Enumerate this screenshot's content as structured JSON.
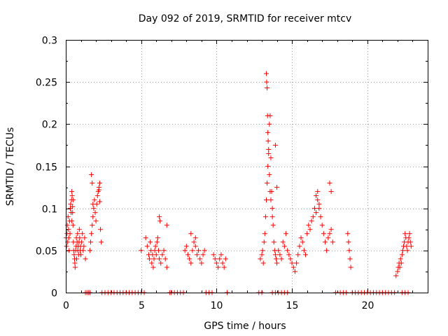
{
  "chart_data": {
    "type": "scatter",
    "title": "Day 092 of 2019, SRMTID for receiver mtcv",
    "xlabel": "GPS time / hours",
    "ylabel": "SRMTID / TECUs",
    "xlim": [
      0,
      24
    ],
    "ylim": [
      0,
      0.3
    ],
    "grid": true,
    "marker": "+",
    "color": "#ff0000",
    "x_ticks": [
      0,
      5,
      10,
      15,
      20
    ],
    "x_tick_labels": [
      "0",
      "5",
      "10",
      "15",
      "20"
    ],
    "y_ticks": [
      0,
      0.05,
      0.1,
      0.15,
      0.2,
      0.25,
      0.3
    ],
    "y_tick_labels": [
      "0",
      "0.05",
      "0.1",
      "0.15",
      "0.2",
      "0.25",
      "0.3"
    ],
    "series": [
      {
        "name": "SRMTID",
        "x": [
          0.02,
          0.05,
          0.08,
          0.1,
          0.12,
          0.15,
          0.18,
          0.2,
          0.22,
          0.25,
          0.28,
          0.3,
          0.32,
          0.35,
          0.38,
          0.4,
          0.42,
          0.45,
          0.48,
          0.5,
          0.52,
          0.55,
          0.58,
          0.6,
          0.62,
          0.65,
          0.68,
          0.7,
          0.72,
          0.75,
          0.78,
          0.8,
          0.82,
          0.85,
          0.88,
          0.9,
          0.92,
          0.95,
          0.98,
          1.0,
          1.05,
          1.1,
          1.15,
          1.2,
          1.25,
          1.3,
          1.6,
          1.65,
          1.7,
          1.75,
          1.8,
          1.85,
          1.9,
          1.95,
          2.0,
          2.05,
          2.1,
          2.15,
          2.2,
          2.25,
          2.3,
          2.35,
          5.0,
          5.3,
          5.4,
          5.5,
          5.55,
          5.6,
          5.65,
          5.7,
          5.75,
          5.8,
          5.85,
          5.9,
          5.95,
          6.0,
          6.05,
          6.1,
          6.15,
          6.2,
          6.3,
          6.4,
          6.5,
          6.6,
          6.7,
          7.9,
          8.0,
          8.1,
          8.2,
          8.3,
          8.4,
          8.5,
          8.6,
          8.7,
          8.8,
          8.9,
          9.0,
          9.1,
          9.2,
          9.8,
          9.9,
          10.0,
          10.1,
          10.2,
          10.3,
          10.4,
          10.5,
          10.6,
          12.9,
          13.0,
          13.05,
          13.1,
          13.15,
          13.2,
          13.25,
          13.3,
          13.35,
          13.4,
          13.45,
          13.5,
          13.55,
          13.6,
          13.65,
          13.7,
          13.75,
          13.8,
          13.85,
          13.9,
          13.95,
          14.0,
          14.1,
          14.2,
          14.3,
          14.4,
          14.5,
          14.6,
          14.7,
          14.8,
          14.9,
          15.0,
          15.1,
          15.2,
          15.3,
          15.4,
          15.5,
          15.6,
          15.7,
          15.8,
          15.9,
          16.0,
          16.1,
          16.2,
          16.3,
          16.4,
          16.5,
          16.6,
          16.7,
          16.8,
          16.9,
          17.0,
          17.1,
          17.2,
          17.3,
          17.4,
          17.5,
          17.6,
          17.7,
          18.7,
          18.75,
          18.8,
          18.85,
          18.9,
          21.9,
          22.0,
          22.05,
          22.1,
          22.15,
          22.2,
          22.25,
          22.3,
          22.35,
          22.4,
          22.45,
          22.5,
          22.55,
          22.6,
          22.65,
          22.7,
          22.75,
          22.8,
          22.85,
          22.9,
          13.3,
          13.32,
          13.35,
          13.38,
          13.4,
          13.42,
          13.45,
          13.5,
          13.55,
          13.6,
          13.7,
          13.9,
          14.0,
          1.7,
          1.75,
          1.8,
          2.2,
          2.25,
          0.4,
          0.45,
          0.5,
          16.6,
          16.7,
          16.8,
          17.5,
          17.6,
          6.2,
          6.25,
          6.7,
          8.3,
          8.6,
          1.3,
          1.4,
          1.5,
          1.6,
          2.4,
          2.6,
          2.8,
          3.0,
          3.2,
          3.4,
          3.6,
          3.8,
          4.0,
          4.2,
          4.4,
          4.6,
          4.8,
          5.0,
          5.2,
          6.9,
          7.0,
          7.2,
          7.4,
          7.6,
          7.8,
          9.3,
          9.5,
          9.7,
          10.7,
          12.8,
          13.0,
          13.7,
          13.9,
          14.1,
          14.3,
          14.5,
          14.7,
          17.9,
          18.2,
          18.4,
          18.6,
          19.0,
          19.2,
          19.4,
          19.6,
          19.8,
          20.0,
          20.2,
          20.4,
          20.6,
          20.8,
          21.0,
          21.2,
          21.4,
          21.6,
          21.8,
          22.3,
          22.5,
          22.7
        ],
        "y": [
          0.065,
          0.055,
          0.07,
          0.08,
          0.06,
          0.09,
          0.075,
          0.065,
          0.05,
          0.085,
          0.07,
          0.1,
          0.105,
          0.095,
          0.11,
          0.12,
          0.115,
          0.102,
          0.08,
          0.06,
          0.05,
          0.045,
          0.04,
          0.035,
          0.03,
          0.05,
          0.055,
          0.065,
          0.04,
          0.06,
          0.07,
          0.05,
          0.055,
          0.045,
          0.06,
          0.075,
          0.065,
          0.05,
          0.055,
          0.045,
          0.06,
          0.07,
          0.05,
          0.055,
          0.065,
          0.04,
          0.05,
          0.06,
          0.07,
          0.08,
          0.09,
          0.1,
          0.11,
          0.095,
          0.085,
          0.105,
          0.115,
          0.12,
          0.125,
          0.13,
          0.075,
          0.06,
          0.05,
          0.065,
          0.055,
          0.045,
          0.04,
          0.06,
          0.05,
          0.035,
          0.045,
          0.03,
          0.04,
          0.05,
          0.055,
          0.045,
          0.06,
          0.065,
          0.05,
          0.04,
          0.035,
          0.045,
          0.05,
          0.04,
          0.03,
          0.05,
          0.055,
          0.045,
          0.04,
          0.035,
          0.05,
          0.06,
          0.055,
          0.045,
          0.05,
          0.04,
          0.035,
          0.045,
          0.05,
          0.045,
          0.04,
          0.035,
          0.03,
          0.04,
          0.045,
          0.035,
          0.03,
          0.04,
          0.04,
          0.045,
          0.05,
          0.035,
          0.06,
          0.07,
          0.09,
          0.11,
          0.13,
          0.15,
          0.17,
          0.2,
          0.21,
          0.16,
          0.12,
          0.1,
          0.08,
          0.06,
          0.05,
          0.045,
          0.04,
          0.035,
          0.05,
          0.045,
          0.04,
          0.06,
          0.055,
          0.07,
          0.05,
          0.045,
          0.04,
          0.035,
          0.03,
          0.025,
          0.035,
          0.045,
          0.055,
          0.065,
          0.06,
          0.05,
          0.045,
          0.07,
          0.08,
          0.075,
          0.085,
          0.09,
          0.1,
          0.095,
          0.11,
          0.105,
          0.09,
          0.08,
          0.07,
          0.06,
          0.05,
          0.065,
          0.07,
          0.075,
          0.06,
          0.07,
          0.06,
          0.05,
          0.04,
          0.03,
          0.02,
          0.025,
          0.03,
          0.035,
          0.03,
          0.04,
          0.035,
          0.045,
          0.05,
          0.055,
          0.06,
          0.07,
          0.065,
          0.055,
          0.05,
          0.06,
          0.065,
          0.07,
          0.06,
          0.055,
          0.26,
          0.25,
          0.243,
          0.21,
          0.19,
          0.18,
          0.165,
          0.14,
          0.12,
          0.11,
          0.09,
          0.175,
          0.125,
          0.14,
          0.13,
          0.105,
          0.122,
          0.108,
          0.085,
          0.095,
          0.11,
          0.115,
          0.12,
          0.1,
          0.13,
          0.12,
          0.09,
          0.085,
          0.08,
          0.07,
          0.065,
          0,
          0,
          0,
          0,
          0,
          0,
          0,
          0,
          0,
          0,
          0,
          0,
          0,
          0,
          0,
          0,
          0,
          0,
          0,
          0,
          0,
          0,
          0,
          0,
          0,
          0,
          0,
          0,
          0,
          0,
          0,
          0,
          0,
          0,
          0,
          0,
          0,
          0,
          0,
          0,
          0,
          0,
          0,
          0,
          0,
          0,
          0,
          0,
          0,
          0,
          0,
          0,
          0,
          0,
          0,
          0,
          0,
          0,
          0
        ]
      }
    ]
  }
}
